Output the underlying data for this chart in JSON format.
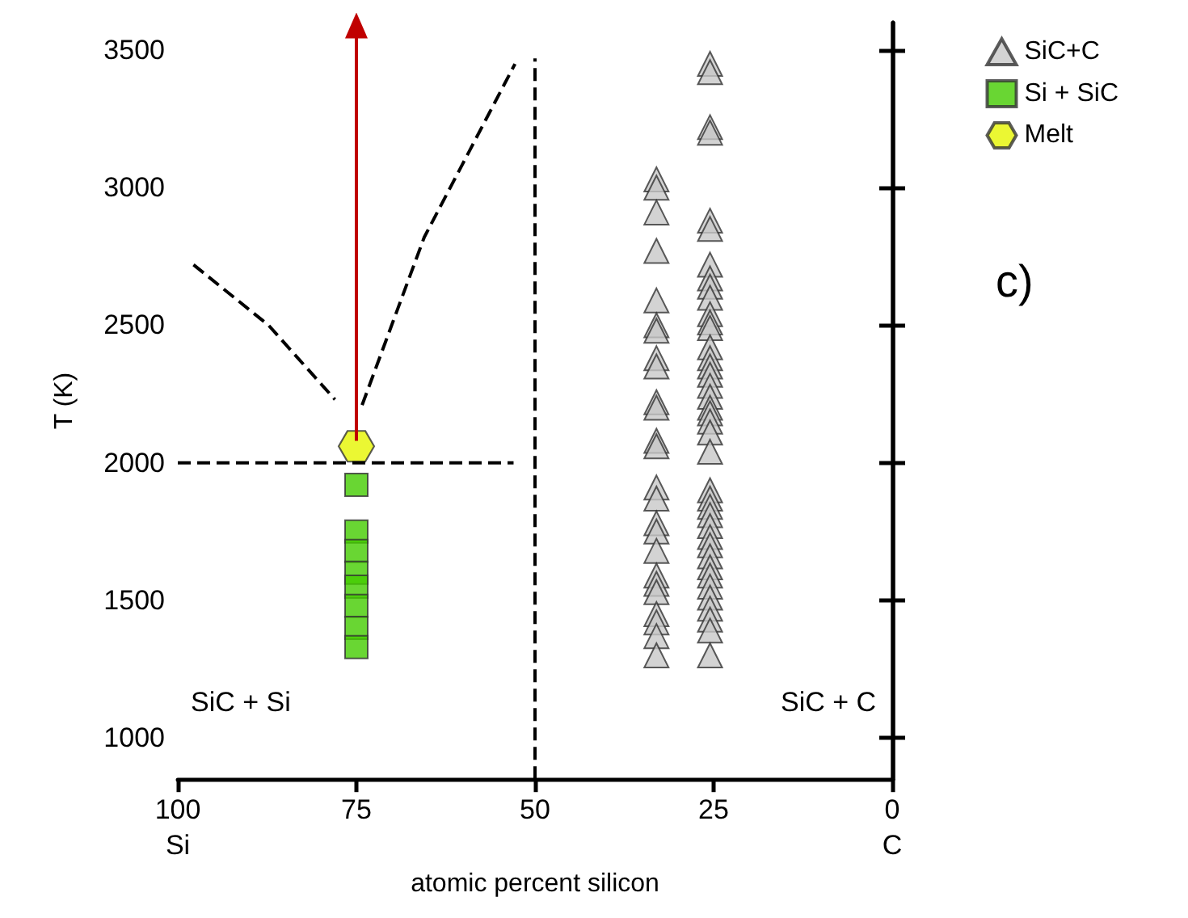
{
  "chart_data": {
    "type": "scatter",
    "xlabel": "atomic percent silicon",
    "ylabel": "T (K)",
    "xlim": [
      100,
      0
    ],
    "xticks": [
      {
        "value": 100,
        "label": "100\nSi"
      },
      75,
      50,
      25,
      {
        "value": 0,
        "label": "0\nC"
      }
    ],
    "ylim": [
      850,
      3600
    ],
    "yticks": [
      1000,
      1500,
      2000,
      2500,
      3000,
      3500
    ],
    "legend": "top right",
    "grid": false,
    "annotations": [
      "c)",
      "SiC + Si",
      "SiC + C"
    ],
    "series": [
      {
        "name": "SiC+C",
        "marker": "triangle",
        "color": "#c8c8c8",
        "x": [
          33,
          33,
          33,
          33,
          33,
          33,
          33,
          33,
          33,
          33,
          33,
          33,
          33,
          33,
          33,
          33,
          33,
          33,
          33,
          33,
          33,
          33,
          33,
          33,
          33,
          25.5,
          25.5,
          25.5,
          25.5,
          25.5,
          25.5,
          25.5,
          25.5,
          25.5,
          25.5,
          25.5,
          25.5,
          25.5,
          25.5,
          25.5,
          25.5,
          25.5,
          25.5,
          25.5,
          25.5,
          25.5,
          25.5,
          25.5,
          25.5,
          25.5,
          25.5,
          25.5,
          25.5,
          25.5,
          25.5,
          25.5,
          25.5,
          25.5,
          25.5,
          25.5,
          25.5,
          25.5,
          25.5,
          25.5,
          25.5
        ],
        "values": [
          3030,
          3000,
          2910,
          2770,
          2590,
          2500,
          2480,
          2380,
          2350,
          2220,
          2200,
          2080,
          2060,
          1910,
          1870,
          1780,
          1750,
          1680,
          1590,
          1560,
          1530,
          1450,
          1420,
          1370,
          1300,
          3450,
          3420,
          3220,
          3200,
          2880,
          2850,
          2720,
          2670,
          2640,
          2600,
          2540,
          2510,
          2490,
          2420,
          2380,
          2350,
          2320,
          2280,
          2240,
          2200,
          2180,
          2150,
          2110,
          2040,
          1900,
          1870,
          1840,
          1810,
          1770,
          1730,
          1700,
          1660,
          1620,
          1590,
          1550,
          1510,
          1470,
          1430,
          1390,
          1300
        ]
      },
      {
        "name": "Si + SiC",
        "marker": "square",
        "color": "#44cc00",
        "x": [
          75,
          75,
          75,
          75,
          75,
          75,
          75,
          75
        ],
        "values": [
          1920,
          1750,
          1680,
          1600,
          1550,
          1480,
          1400,
          1330
        ]
      },
      {
        "name": "Melt",
        "color": "#e6f500",
        "x": [
          75
        ],
        "values": [
          2060
        ]
      },
      {
        "type": "line",
        "marker": "none",
        "line_style": "dashed",
        "color": "#000000",
        "x": [
          97.8,
          87.3,
          78
        ],
        "values": [
          2720,
          2500,
          2230
        ]
      },
      {
        "type": "line",
        "marker": "none",
        "line_style": "dashed",
        "color": "#000000",
        "x": [
          74.2,
          65.5,
          52.8
        ],
        "values": [
          2210,
          2820,
          3450
        ]
      },
      {
        "type": "line",
        "marker": "none",
        "line_style": "dashed",
        "color": "#000000",
        "x": [
          100,
          53
        ],
        "values": [
          2000,
          2000
        ]
      },
      {
        "type": "line",
        "marker": "none",
        "line_style": "dashed",
        "color": "#000000",
        "x": [
          50,
          50
        ],
        "values": [
          850,
          3470
        ]
      },
      {
        "type": "line",
        "line_style": "solid",
        "color": "#c00000",
        "x": [
          75,
          75
        ],
        "values": [
          2080,
          3590
        ]
      }
    ]
  }
}
